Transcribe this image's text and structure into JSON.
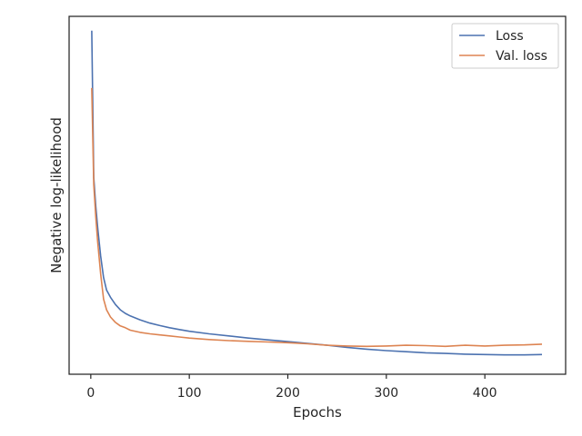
{
  "chart_data": {
    "type": "line",
    "title": "",
    "xlabel": "Epochs",
    "ylabel": "Negative log-likelihood",
    "xlim": [
      -22,
      482
    ],
    "ylim": [
      0,
      1
    ],
    "x_ticks": [
      0,
      100,
      200,
      300,
      400
    ],
    "y_ticks_shown": false,
    "grid": false,
    "legend_position": "top-right",
    "y_units_note": "y axis has no tick labels; values are relative (0 = axis bottom, 1 = axis top)",
    "series": [
      {
        "name": "Loss",
        "color": "#4c72b0",
        "points": [
          [
            1,
            0.96
          ],
          [
            3,
            0.55
          ],
          [
            5,
            0.47
          ],
          [
            7,
            0.41
          ],
          [
            10,
            0.33
          ],
          [
            13,
            0.27
          ],
          [
            16,
            0.235
          ],
          [
            20,
            0.215
          ],
          [
            25,
            0.195
          ],
          [
            30,
            0.18
          ],
          [
            35,
            0.17
          ],
          [
            40,
            0.163
          ],
          [
            50,
            0.152
          ],
          [
            60,
            0.143
          ],
          [
            70,
            0.136
          ],
          [
            80,
            0.13
          ],
          [
            90,
            0.125
          ],
          [
            100,
            0.12
          ],
          [
            120,
            0.113
          ],
          [
            140,
            0.107
          ],
          [
            160,
            0.101
          ],
          [
            180,
            0.096
          ],
          [
            200,
            0.091
          ],
          [
            220,
            0.086
          ],
          [
            240,
            0.081
          ],
          [
            260,
            0.075
          ],
          [
            280,
            0.07
          ],
          [
            300,
            0.066
          ],
          [
            320,
            0.063
          ],
          [
            340,
            0.06
          ],
          [
            360,
            0.058
          ],
          [
            380,
            0.056
          ],
          [
            400,
            0.055
          ],
          [
            420,
            0.054
          ],
          [
            440,
            0.054
          ],
          [
            458,
            0.055
          ]
        ]
      },
      {
        "name": "Val. loss",
        "color": "#dd8452",
        "points": [
          [
            1,
            0.8
          ],
          [
            3,
            0.53
          ],
          [
            5,
            0.44
          ],
          [
            7,
            0.37
          ],
          [
            10,
            0.28
          ],
          [
            13,
            0.21
          ],
          [
            16,
            0.18
          ],
          [
            20,
            0.16
          ],
          [
            25,
            0.145
          ],
          [
            30,
            0.135
          ],
          [
            35,
            0.13
          ],
          [
            40,
            0.123
          ],
          [
            50,
            0.117
          ],
          [
            60,
            0.113
          ],
          [
            70,
            0.11
          ],
          [
            80,
            0.107
          ],
          [
            90,
            0.104
          ],
          [
            100,
            0.101
          ],
          [
            120,
            0.097
          ],
          [
            140,
            0.094
          ],
          [
            160,
            0.092
          ],
          [
            180,
            0.09
          ],
          [
            200,
            0.088
          ],
          [
            220,
            0.085
          ],
          [
            240,
            0.081
          ],
          [
            260,
            0.079
          ],
          [
            280,
            0.078
          ],
          [
            300,
            0.079
          ],
          [
            320,
            0.081
          ],
          [
            340,
            0.08
          ],
          [
            360,
            0.078
          ],
          [
            380,
            0.081
          ],
          [
            400,
            0.079
          ],
          [
            420,
            0.081
          ],
          [
            440,
            0.082
          ],
          [
            458,
            0.084
          ]
        ]
      }
    ]
  }
}
